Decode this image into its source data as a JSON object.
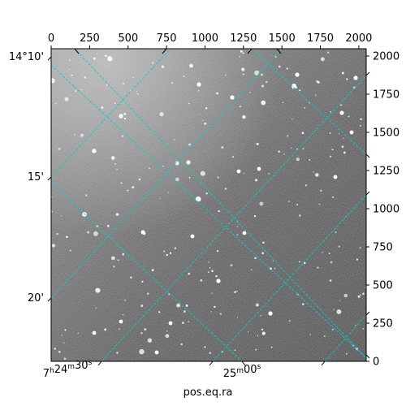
{
  "chart_data": {
    "type": "image",
    "xlabel": "pos.eq.ra",
    "ylabel": "",
    "pixel_x_axis": {
      "range": [
        0,
        2048
      ],
      "ticks": [
        0,
        250,
        500,
        750,
        1000,
        1250,
        1500,
        1750,
        2000
      ],
      "labels": [
        "0",
        "250",
        "500",
        "750",
        "1000",
        "1250",
        "1500",
        "1750",
        "2000"
      ],
      "position": "top"
    },
    "pixel_y_axis": {
      "range": [
        0,
        2048
      ],
      "ticks": [
        0,
        250,
        500,
        750,
        1000,
        1250,
        1500,
        1750,
        2000
      ],
      "labels": [
        "0",
        "250",
        "500",
        "750",
        "1000",
        "1250",
        "1500",
        "1750",
        "2000"
      ],
      "position": "right"
    },
    "world_dec_labels": [
      {
        "text": "14°10'",
        "dec_arcmin": 10
      },
      {
        "text": "15'",
        "dec_arcmin": 15
      },
      {
        "text": "20'",
        "dec_arcmin": 20
      }
    ],
    "world_ra_labels": [
      {
        "text": "7h24m30s",
        "ra_sec": 30
      },
      {
        "text": "25m00s",
        "ra_sec": 60
      }
    ],
    "grid": true,
    "grid_color": "#00d0d0",
    "image_colormap": "gray"
  }
}
